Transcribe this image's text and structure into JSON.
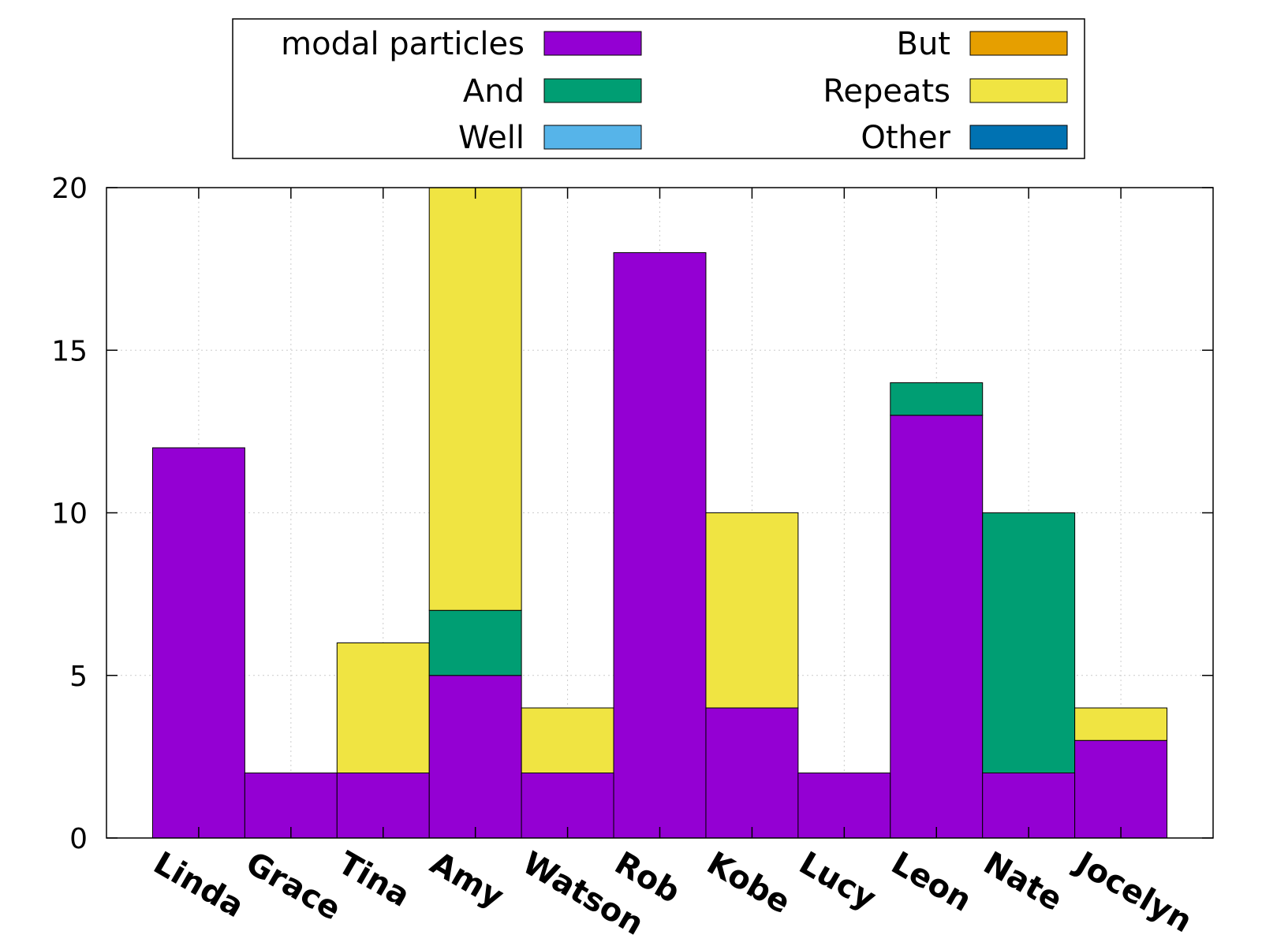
{
  "chart_data": {
    "type": "bar",
    "stacked": true,
    "categories": [
      "Linda",
      "Grace",
      "Tina",
      "Amy",
      "Watson",
      "Rob",
      "Kobe",
      "Lucy",
      "Leon",
      "Nate",
      "Jocelyn"
    ],
    "series": [
      {
        "name": "modal particles",
        "color": "#9400d3",
        "values": [
          12,
          2,
          2,
          5,
          2,
          18,
          4,
          2,
          13,
          2,
          3
        ]
      },
      {
        "name": "And",
        "color": "#009e73",
        "values": [
          0,
          0,
          0,
          2,
          0,
          0,
          0,
          0,
          1,
          8,
          0
        ]
      },
      {
        "name": "Well",
        "color": "#56b4e9",
        "values": [
          0,
          0,
          0,
          0,
          0,
          0,
          0,
          0,
          0,
          0,
          0
        ]
      },
      {
        "name": "But",
        "color": "#e69f00",
        "values": [
          0,
          0,
          0,
          0,
          0,
          0,
          0,
          0,
          0,
          0,
          0
        ]
      },
      {
        "name": "Repeats",
        "color": "#f0e442",
        "values": [
          0,
          0,
          4,
          13,
          2,
          0,
          6,
          0,
          0,
          0,
          1
        ]
      },
      {
        "name": "Other",
        "color": "#0072b2",
        "values": [
          0,
          0,
          0,
          0,
          0,
          0,
          0,
          0,
          0,
          0,
          0
        ]
      }
    ],
    "ylim": [
      0,
      20
    ],
    "yticks": [
      0,
      5,
      10,
      15,
      20
    ],
    "grid": true,
    "legend": "top-center"
  }
}
